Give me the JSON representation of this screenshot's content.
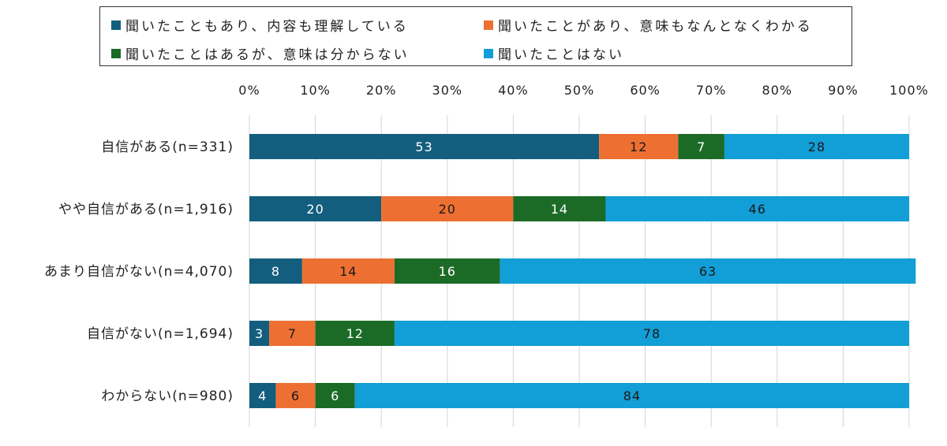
{
  "chart_data": {
    "type": "bar",
    "orientation": "horizontal",
    "stacked": true,
    "categories": [
      "自信がある(n=331)",
      "やや自信がある(n=1,916)",
      "あまり自信がない(n=4,070)",
      "自信がない(n=1,694)",
      "わからない(n=980)"
    ],
    "series": [
      {
        "name": "聞いたこともあり、内容も理解している",
        "color": "#135E7E",
        "label_color": "#ffffff",
        "values": [
          53,
          20,
          8,
          3,
          4
        ]
      },
      {
        "name": "聞いたことがあり、意味もなんとなくわかる",
        "color": "#ED7032",
        "label_color": "#1a1a1a",
        "values": [
          12,
          20,
          14,
          7,
          6
        ]
      },
      {
        "name": "聞いたことはあるが、意味は分からない",
        "color": "#1B6B27",
        "label_color": "#ffffff",
        "values": [
          7,
          14,
          16,
          12,
          6
        ]
      },
      {
        "name": "聞いたことはない",
        "color": "#129ED6",
        "label_color": "#1a1a1a",
        "values": [
          28,
          46,
          63,
          78,
          84
        ]
      }
    ],
    "xlim": [
      0,
      100
    ],
    "x_ticks": [
      "0%",
      "10%",
      "20%",
      "30%",
      "40%",
      "50%",
      "60%",
      "70%",
      "80%",
      "90%",
      "100%"
    ],
    "grid": true,
    "legend_position": "top"
  }
}
